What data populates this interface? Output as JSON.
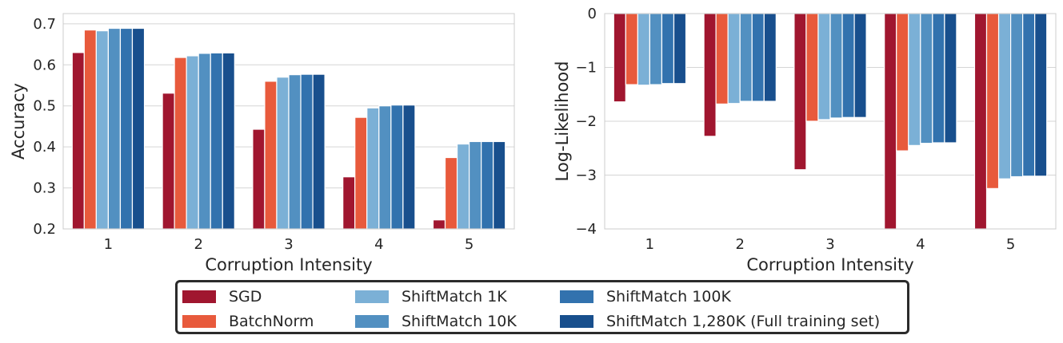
{
  "colors": [
    "#a0162f",
    "#e85a3c",
    "#7bb0d6",
    "#5290c1",
    "#3272ae",
    "#184f8d"
  ],
  "series_names": [
    "SGD",
    "BatchNorm",
    "ShiftMatch 1K",
    "ShiftMatch 10K",
    "ShiftMatch 100K",
    "ShiftMatch 1,280K (Full training set)"
  ],
  "chart_data": [
    {
      "type": "bar",
      "xlabel": "Corruption Intensity",
      "ylabel": "Accuracy",
      "categories": [
        "1",
        "2",
        "3",
        "4",
        "5"
      ],
      "ylim": [
        0.2,
        0.725
      ],
      "yticks": [
        0.2,
        0.3,
        0.4,
        0.5,
        0.6,
        0.7
      ],
      "ytick_labels": [
        "0.2",
        "0.3",
        "0.4",
        "0.5",
        "0.6",
        "0.7"
      ],
      "grid": true,
      "series": [
        {
          "name": "SGD",
          "values": [
            0.63,
            0.531,
            0.443,
            0.327,
            0.222
          ]
        },
        {
          "name": "BatchNorm",
          "values": [
            0.685,
            0.618,
            0.56,
            0.472,
            0.374
          ]
        },
        {
          "name": "ShiftMatch 1K",
          "values": [
            0.683,
            0.622,
            0.57,
            0.495,
            0.407
          ]
        },
        {
          "name": "ShiftMatch 10K",
          "values": [
            0.689,
            0.628,
            0.576,
            0.5,
            0.413
          ]
        },
        {
          "name": "ShiftMatch 100K",
          "values": [
            0.689,
            0.629,
            0.577,
            0.502,
            0.413
          ]
        },
        {
          "name": "ShiftMatch 1,280K (Full training set)",
          "values": [
            0.689,
            0.629,
            0.577,
            0.502,
            0.413
          ]
        }
      ]
    },
    {
      "type": "bar",
      "xlabel": "Corruption Intensity",
      "ylabel": "Log-Likelihood",
      "categories": [
        "1",
        "2",
        "3",
        "4",
        "5"
      ],
      "ylim": [
        -4,
        0
      ],
      "yticks": [
        -4,
        -3,
        -2,
        -1,
        0
      ],
      "ytick_labels": [
        "−4",
        "−3",
        "−2",
        "−1",
        "0"
      ],
      "grid": true,
      "series": [
        {
          "name": "SGD",
          "values": [
            -1.64,
            -2.28,
            -2.9,
            -4.0,
            -4.0
          ]
        },
        {
          "name": "BatchNorm",
          "values": [
            -1.32,
            -1.68,
            -2.0,
            -2.55,
            -3.25
          ]
        },
        {
          "name": "ShiftMatch 1K",
          "values": [
            -1.33,
            -1.67,
            -1.97,
            -2.45,
            -3.07
          ]
        },
        {
          "name": "ShiftMatch 10K",
          "values": [
            -1.32,
            -1.63,
            -1.94,
            -2.41,
            -3.03
          ]
        },
        {
          "name": "ShiftMatch 100K",
          "values": [
            -1.3,
            -1.63,
            -1.93,
            -2.4,
            -3.02
          ]
        },
        {
          "name": "ShiftMatch 1,280K (Full training set)",
          "values": [
            -1.3,
            -1.63,
            -1.93,
            -2.4,
            -3.02
          ]
        }
      ]
    }
  ]
}
